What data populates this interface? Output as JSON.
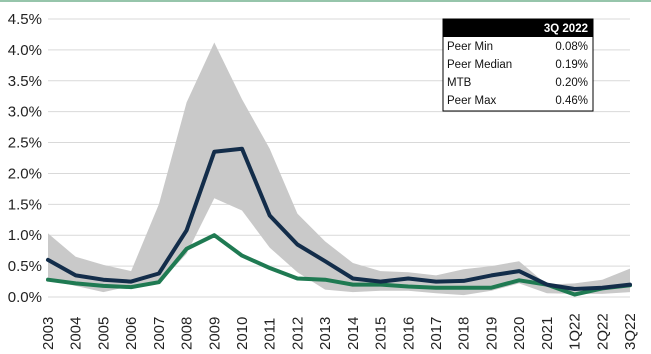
{
  "chart_data": {
    "type": "line",
    "title": "",
    "xlabel": "",
    "ylabel": "",
    "categories": [
      "2003",
      "2004",
      "2005",
      "2006",
      "2007",
      "2008",
      "2009",
      "2010",
      "2011",
      "2012",
      "2013",
      "2014",
      "2015",
      "2016",
      "2017",
      "2018",
      "2019",
      "2020",
      "2021",
      "1Q22",
      "2Q22",
      "3Q22"
    ],
    "ylim": [
      0,
      4.5
    ],
    "yticks": [
      "0.0%",
      "0.5%",
      "1.0%",
      "1.5%",
      "2.0%",
      "2.5%",
      "3.0%",
      "3.5%",
      "4.0%",
      "4.5%"
    ],
    "grid": true,
    "band": {
      "name": "Peer Min – Peer Max",
      "color": "#c9c9c9",
      "lower": [
        0.27,
        0.18,
        0.08,
        0.18,
        0.22,
        0.7,
        1.6,
        1.4,
        0.8,
        0.4,
        0.12,
        0.08,
        0.1,
        0.1,
        0.06,
        0.03,
        0.1,
        0.22,
        0.06,
        0.05,
        0.05,
        0.08
      ],
      "upper": [
        1.03,
        0.65,
        0.52,
        0.42,
        1.5,
        3.15,
        4.12,
        3.2,
        2.4,
        1.35,
        0.9,
        0.55,
        0.42,
        0.4,
        0.35,
        0.45,
        0.5,
        0.58,
        0.2,
        0.22,
        0.28,
        0.46
      ]
    },
    "series": [
      {
        "name": "MTB",
        "color": "#132d4a",
        "values": [
          0.6,
          0.35,
          0.28,
          0.25,
          0.38,
          1.08,
          2.35,
          2.4,
          1.32,
          0.85,
          0.58,
          0.3,
          0.25,
          0.3,
          0.25,
          0.26,
          0.35,
          0.42,
          0.2,
          0.13,
          0.15,
          0.2
        ]
      },
      {
        "name": "Peer Median",
        "color": "#1f7a52",
        "values": [
          0.28,
          0.22,
          0.18,
          0.16,
          0.24,
          0.78,
          1.0,
          0.67,
          0.47,
          0.3,
          0.28,
          0.2,
          0.2,
          0.17,
          0.15,
          0.15,
          0.15,
          0.27,
          0.2,
          0.04,
          0.14,
          0.19
        ]
      }
    ],
    "summary_box": {
      "header": "3Q 2022",
      "rows": [
        {
          "label": "Peer Min",
          "value": "0.08%"
        },
        {
          "label": "Peer Median",
          "value": "0.19%"
        },
        {
          "label": "MTB",
          "value": "0.20%"
        },
        {
          "label": "Peer Max",
          "value": "0.46%"
        }
      ]
    }
  }
}
